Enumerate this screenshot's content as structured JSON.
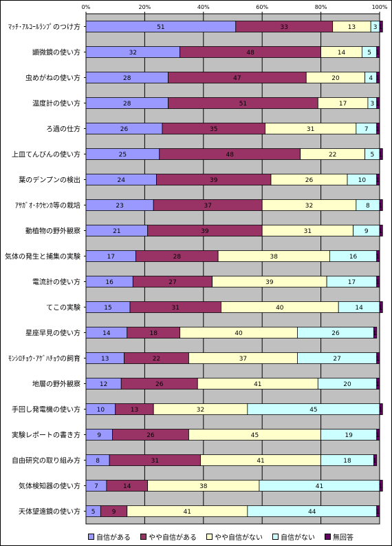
{
  "chart_data": {
    "type": "bar",
    "stacked": true,
    "orientation": "horizontal",
    "percent_axis": true,
    "xlim": [
      0,
      100
    ],
    "x_ticks": [
      "0%",
      "20%",
      "40%",
      "60%",
      "80%",
      "100%"
    ],
    "categories": [
      "ﾏｯﾁ･ｱﾙｺｰﾙﾗﾝﾌﾟのつけ方",
      "顕微鏡の使い方",
      "虫めがねの使い方",
      "温度計の使い方",
      "ろ過の仕方",
      "上皿てんびんの使い方",
      "葉のデンプンの検出",
      "ｱｻｶﾞｵ･ﾎｳｾﾝｶ等の栽培",
      "動植物の野外観察",
      "気体の発生と捕集の実験",
      "電流計の使い方",
      "てこの実験",
      "星座早見の使い方",
      "ﾓﾝｼﾛﾁｮｳ･ｱｹﾞﾊﾁｮｳの飼育",
      "地層の野外観察",
      "手回し発電機の使い方",
      "実験レポートの書き方",
      "自由研究の取り組み方",
      "気体検知器の使い方",
      "天体望遠鏡の使い方"
    ],
    "series": [
      {
        "name": "自信がある",
        "color": "#9999FF",
        "values": [
          51,
          32,
          28,
          28,
          26,
          25,
          24,
          23,
          21,
          17,
          16,
          15,
          14,
          13,
          12,
          10,
          9,
          8,
          7,
          5
        ]
      },
      {
        "name": "やや自信がある",
        "color": "#993366",
        "values": [
          33,
          48,
          47,
          51,
          35,
          48,
          39,
          37,
          39,
          28,
          27,
          31,
          18,
          22,
          26,
          13,
          26,
          31,
          14,
          9
        ]
      },
      {
        "name": "やや自信がない",
        "color": "#FFFFCC",
        "values": [
          13,
          14,
          20,
          17,
          31,
          22,
          26,
          32,
          31,
          38,
          39,
          40,
          40,
          37,
          41,
          32,
          45,
          41,
          38,
          41
        ]
      },
      {
        "name": "自信がない",
        "color": "#CCFFFF",
        "values": [
          3,
          5,
          4,
          3,
          7,
          5,
          10,
          8,
          9,
          16,
          17,
          14,
          26,
          27,
          20,
          45,
          19,
          18,
          41,
          44
        ]
      },
      {
        "name": "無回答",
        "color": "#660066",
        "values": [
          1,
          1,
          1,
          1,
          1,
          1,
          1,
          1,
          1,
          1,
          1,
          1,
          1,
          1,
          1,
          1,
          1,
          1,
          1,
          1
        ]
      }
    ],
    "grid": true,
    "legend_position": "bottom"
  }
}
